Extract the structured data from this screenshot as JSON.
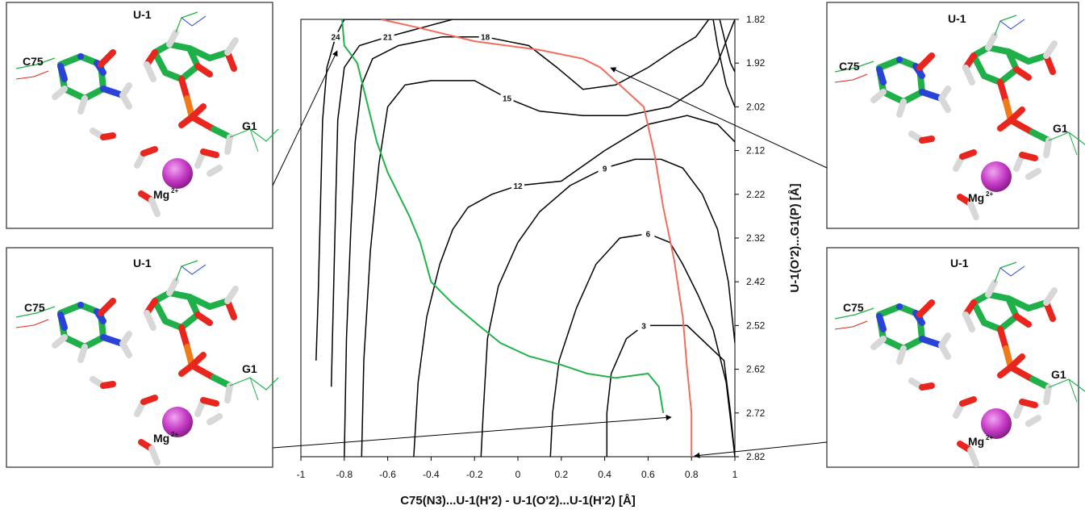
{
  "chart_data": {
    "type": "contour",
    "xlabel": "C75(N3)...U-1(H'2) - U-1(O'2)...U-1(H'2) [Å]",
    "ylabel": "U-1(O'2)...G1(P) [Å]",
    "xlim": [
      -1,
      1
    ],
    "ylim": [
      1.82,
      2.82
    ],
    "y_inverted": true,
    "y_axis_side": "right",
    "x_ticks": [
      "-1",
      "-0.8",
      "-0.6",
      "-0.4",
      "-0.2",
      "0",
      "0.2",
      "0.4",
      "0.6",
      "0.8",
      "1"
    ],
    "y_ticks": [
      "1.82",
      "1.92",
      "2.02",
      "2.12",
      "2.22",
      "2.32",
      "2.42",
      "2.52",
      "2.62",
      "2.72",
      "2.82"
    ],
    "contour_levels": [
      {
        "label": "3",
        "color": "#000000",
        "points": [
          [
            0.41,
            2.82
          ],
          [
            0.41,
            2.72
          ],
          [
            0.43,
            2.63
          ],
          [
            0.5,
            2.55
          ],
          [
            0.58,
            2.52
          ],
          [
            0.78,
            2.52
          ],
          [
            0.95,
            2.6
          ],
          [
            0.98,
            2.72
          ],
          [
            1.0,
            2.82
          ]
        ]
      },
      {
        "label": "6",
        "color": "#000000",
        "points": [
          [
            0.15,
            2.82
          ],
          [
            0.16,
            2.72
          ],
          [
            0.19,
            2.6
          ],
          [
            0.27,
            2.48
          ],
          [
            0.36,
            2.38
          ],
          [
            0.47,
            2.32
          ],
          [
            0.6,
            2.31
          ],
          [
            0.7,
            2.33
          ],
          [
            0.76,
            2.38
          ],
          [
            0.83,
            2.45
          ],
          [
            0.9,
            2.53
          ],
          [
            0.96,
            2.65
          ],
          [
            1.0,
            2.82
          ]
        ]
      },
      {
        "label": "9",
        "color": "#000000",
        "points": [
          [
            -0.17,
            2.82
          ],
          [
            -0.16,
            2.72
          ],
          [
            -0.14,
            2.55
          ],
          [
            -0.09,
            2.43
          ],
          [
            0.0,
            2.33
          ],
          [
            0.1,
            2.26
          ],
          [
            0.24,
            2.2
          ],
          [
            0.4,
            2.16
          ],
          [
            0.54,
            2.14
          ],
          [
            0.66,
            2.14
          ],
          [
            0.76,
            2.16
          ],
          [
            0.85,
            2.22
          ],
          [
            0.92,
            2.3
          ],
          [
            0.97,
            2.42
          ],
          [
            1.0,
            2.56
          ]
        ]
      },
      {
        "label": "12",
        "color": "#000000",
        "points": [
          [
            -0.48,
            2.82
          ],
          [
            -0.46,
            2.65
          ],
          [
            -0.42,
            2.5
          ],
          [
            -0.36,
            2.38
          ],
          [
            -0.3,
            2.3
          ],
          [
            -0.23,
            2.25
          ],
          [
            -0.12,
            2.22
          ],
          [
            0.0,
            2.2
          ],
          [
            0.2,
            2.19
          ],
          [
            0.4,
            2.12
          ],
          [
            0.6,
            2.06
          ],
          [
            0.78,
            2.04
          ],
          [
            0.92,
            2.06
          ],
          [
            1.0,
            2.1
          ]
        ]
      },
      {
        "label": "15",
        "color": "#000000",
        "points": [
          [
            -0.72,
            2.82
          ],
          [
            -0.71,
            2.6
          ],
          [
            -0.68,
            2.35
          ],
          [
            -0.64,
            2.15
          ],
          [
            -0.6,
            2.02
          ],
          [
            -0.52,
            1.97
          ],
          [
            -0.4,
            1.96
          ],
          [
            -0.2,
            1.96
          ],
          [
            -0.05,
            2.0
          ],
          [
            0.1,
            2.03
          ],
          [
            0.3,
            2.04
          ],
          [
            0.5,
            2.04
          ],
          [
            0.7,
            2.02
          ],
          [
            0.85,
            1.97
          ],
          [
            0.92,
            1.92
          ],
          [
            0.96,
            1.87
          ],
          [
            1.0,
            1.82
          ]
        ]
      },
      {
        "label": "18",
        "color": "#000000",
        "points": [
          [
            -0.8,
            2.82
          ],
          [
            -0.79,
            2.55
          ],
          [
            -0.77,
            2.3
          ],
          [
            -0.75,
            2.1
          ],
          [
            -0.72,
            1.97
          ],
          [
            -0.67,
            1.91
          ],
          [
            -0.55,
            1.88
          ],
          [
            -0.35,
            1.86
          ],
          [
            -0.15,
            1.86
          ],
          [
            0.05,
            1.88
          ],
          [
            0.18,
            1.93
          ],
          [
            0.3,
            1.98
          ],
          [
            0.45,
            1.97
          ],
          [
            0.6,
            1.93
          ],
          [
            0.72,
            1.89
          ],
          [
            0.82,
            1.86
          ],
          [
            0.88,
            1.82
          ]
        ]
      },
      {
        "label": "21",
        "color": "#000000",
        "points": [
          [
            -0.86,
            2.66
          ],
          [
            -0.85,
            2.45
          ],
          [
            -0.84,
            2.25
          ],
          [
            -0.83,
            2.05
          ],
          [
            -0.8,
            1.93
          ],
          [
            -0.73,
            1.88
          ],
          [
            -0.6,
            1.86
          ],
          [
            -0.45,
            1.84
          ],
          [
            -0.3,
            1.82
          ],
          [
            0.9,
            1.82
          ],
          [
            0.92,
            1.88
          ],
          [
            0.96,
            1.97
          ],
          [
            1.0,
            2.02
          ]
        ]
      },
      {
        "label": "24",
        "color": "#000000",
        "points": [
          [
            -0.93,
            2.6
          ],
          [
            -0.92,
            2.45
          ],
          [
            -0.91,
            2.25
          ],
          [
            -0.9,
            2.05
          ],
          [
            -0.88,
            1.93
          ],
          [
            -0.84,
            1.86
          ],
          [
            -0.8,
            1.82
          ],
          [
            0.93,
            1.82
          ],
          [
            0.95,
            1.86
          ],
          [
            0.98,
            1.92
          ],
          [
            1.0,
            1.94
          ]
        ]
      }
    ],
    "paths": [
      {
        "color": "#24b24a",
        "points": [
          [
            -0.81,
            1.82
          ],
          [
            -0.8,
            1.88
          ],
          [
            -0.74,
            1.92
          ],
          [
            -0.7,
            2.0
          ],
          [
            -0.65,
            2.1
          ],
          [
            -0.6,
            2.17
          ],
          [
            -0.5,
            2.27
          ],
          [
            -0.45,
            2.33
          ],
          [
            -0.4,
            2.42
          ],
          [
            -0.3,
            2.47
          ],
          [
            -0.18,
            2.52
          ],
          [
            -0.08,
            2.56
          ],
          [
            0.05,
            2.59
          ],
          [
            0.2,
            2.61
          ],
          [
            0.32,
            2.63
          ],
          [
            0.45,
            2.64
          ],
          [
            0.6,
            2.63
          ],
          [
            0.65,
            2.66
          ],
          [
            0.67,
            2.72
          ]
        ]
      },
      {
        "color": "#f26d5b",
        "points": [
          [
            -0.63,
            1.82
          ],
          [
            -0.45,
            1.84
          ],
          [
            -0.2,
            1.87
          ],
          [
            0.1,
            1.89
          ],
          [
            0.3,
            1.91
          ],
          [
            0.38,
            1.93
          ],
          [
            0.47,
            1.97
          ],
          [
            0.58,
            2.02
          ],
          [
            0.63,
            2.13
          ],
          [
            0.67,
            2.25
          ],
          [
            0.72,
            2.37
          ],
          [
            0.76,
            2.5
          ],
          [
            0.78,
            2.62
          ],
          [
            0.8,
            2.72
          ],
          [
            0.8,
            2.82
          ]
        ]
      }
    ]
  },
  "panels": [
    {
      "u1": "U-1",
      "c75": "C75",
      "g1": "G1",
      "mg": "Mg",
      "mg_charge": "2+"
    },
    {
      "u1": "U-1",
      "c75": "C75",
      "g1": "G1",
      "mg": "Mg",
      "mg_charge": "2+"
    },
    {
      "u1": "U-1",
      "c75": "C75",
      "g1": "G1",
      "mg": "Mg",
      "mg_charge": "2+"
    },
    {
      "u1": "U-1",
      "c75": "C75",
      "g1": "G1",
      "mg": "Mg",
      "mg_charge": "2+"
    }
  ],
  "colors": {
    "carbon": "#1fb04a",
    "oxygen": "#e8261e",
    "nitrogen": "#2a43d6",
    "phosphorus": "#f07a18",
    "hydrogen": "#d8d8d8",
    "magnesium": "#c63bc6"
  }
}
